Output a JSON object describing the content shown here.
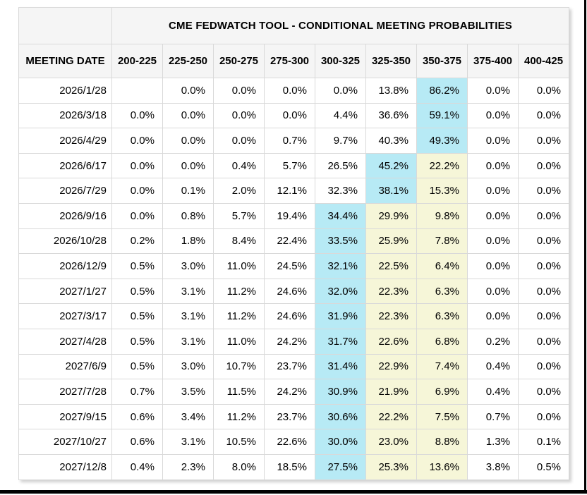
{
  "chart_data": {
    "type": "table",
    "title": "CME FEDWATCH TOOL - CONDITIONAL MEETING PROBABILITIES",
    "corner_label": "",
    "columns": [
      "MEETING DATE",
      "200-225",
      "225-250",
      "250-275",
      "275-300",
      "300-325",
      "325-350",
      "350-375",
      "375-400",
      "400-425"
    ],
    "highlight_legend": {
      "b": "highest-probability cell (light blue)",
      "y": "secondary highlighted cell (pale yellow)"
    },
    "rows": [
      {
        "date": "2026/1/28",
        "values": [
          "",
          "0.0%",
          "0.0%",
          "0.0%",
          "0.0%",
          "13.8%",
          "86.2%",
          "0.0%",
          "0.0%"
        ],
        "hl": [
          "",
          "",
          "",
          "",
          "",
          "",
          "b",
          "",
          ""
        ]
      },
      {
        "date": "2026/3/18",
        "values": [
          "0.0%",
          "0.0%",
          "0.0%",
          "0.0%",
          "4.4%",
          "36.6%",
          "59.1%",
          "0.0%",
          "0.0%"
        ],
        "hl": [
          "",
          "",
          "",
          "",
          "",
          "",
          "b",
          "",
          ""
        ]
      },
      {
        "date": "2026/4/29",
        "values": [
          "0.0%",
          "0.0%",
          "0.0%",
          "0.7%",
          "9.7%",
          "40.3%",
          "49.3%",
          "0.0%",
          "0.0%"
        ],
        "hl": [
          "",
          "",
          "",
          "",
          "",
          "",
          "b",
          "",
          ""
        ]
      },
      {
        "date": "2026/6/17",
        "values": [
          "0.0%",
          "0.0%",
          "0.4%",
          "5.7%",
          "26.5%",
          "45.2%",
          "22.2%",
          "0.0%",
          "0.0%"
        ],
        "hl": [
          "",
          "",
          "",
          "",
          "",
          "b",
          "y",
          "",
          ""
        ]
      },
      {
        "date": "2026/7/29",
        "values": [
          "0.0%",
          "0.1%",
          "2.0%",
          "12.1%",
          "32.3%",
          "38.1%",
          "15.3%",
          "0.0%",
          "0.0%"
        ],
        "hl": [
          "",
          "",
          "",
          "",
          "",
          "b",
          "y",
          "",
          ""
        ]
      },
      {
        "date": "2026/9/16",
        "values": [
          "0.0%",
          "0.8%",
          "5.7%",
          "19.4%",
          "34.4%",
          "29.9%",
          "9.8%",
          "0.0%",
          "0.0%"
        ],
        "hl": [
          "",
          "",
          "",
          "",
          "b",
          "y",
          "y",
          "",
          ""
        ]
      },
      {
        "date": "2026/10/28",
        "values": [
          "0.2%",
          "1.8%",
          "8.4%",
          "22.4%",
          "33.5%",
          "25.9%",
          "7.8%",
          "0.0%",
          "0.0%"
        ],
        "hl": [
          "",
          "",
          "",
          "",
          "b",
          "y",
          "y",
          "",
          ""
        ]
      },
      {
        "date": "2026/12/9",
        "values": [
          "0.5%",
          "3.0%",
          "11.0%",
          "24.5%",
          "32.1%",
          "22.5%",
          "6.4%",
          "0.0%",
          "0.0%"
        ],
        "hl": [
          "",
          "",
          "",
          "",
          "b",
          "y",
          "y",
          "",
          ""
        ]
      },
      {
        "date": "2027/1/27",
        "values": [
          "0.5%",
          "3.1%",
          "11.2%",
          "24.6%",
          "32.0%",
          "22.3%",
          "6.3%",
          "0.0%",
          "0.0%"
        ],
        "hl": [
          "",
          "",
          "",
          "",
          "b",
          "y",
          "y",
          "",
          ""
        ]
      },
      {
        "date": "2027/3/17",
        "values": [
          "0.5%",
          "3.1%",
          "11.2%",
          "24.6%",
          "31.9%",
          "22.3%",
          "6.3%",
          "0.0%",
          "0.0%"
        ],
        "hl": [
          "",
          "",
          "",
          "",
          "b",
          "y",
          "y",
          "",
          ""
        ]
      },
      {
        "date": "2027/4/28",
        "values": [
          "0.5%",
          "3.1%",
          "11.0%",
          "24.2%",
          "31.7%",
          "22.6%",
          "6.8%",
          "0.2%",
          "0.0%"
        ],
        "hl": [
          "",
          "",
          "",
          "",
          "b",
          "y",
          "y",
          "",
          ""
        ]
      },
      {
        "date": "2027/6/9",
        "values": [
          "0.5%",
          "3.0%",
          "10.7%",
          "23.7%",
          "31.4%",
          "22.9%",
          "7.4%",
          "0.4%",
          "0.0%"
        ],
        "hl": [
          "",
          "",
          "",
          "",
          "b",
          "y",
          "y",
          "",
          ""
        ]
      },
      {
        "date": "2027/7/28",
        "values": [
          "0.7%",
          "3.5%",
          "11.5%",
          "24.2%",
          "30.9%",
          "21.9%",
          "6.9%",
          "0.4%",
          "0.0%"
        ],
        "hl": [
          "",
          "",
          "",
          "",
          "b",
          "y",
          "y",
          "",
          ""
        ]
      },
      {
        "date": "2027/9/15",
        "values": [
          "0.6%",
          "3.4%",
          "11.2%",
          "23.7%",
          "30.6%",
          "22.2%",
          "7.5%",
          "0.7%",
          "0.0%"
        ],
        "hl": [
          "",
          "",
          "",
          "",
          "b",
          "y",
          "y",
          "",
          ""
        ]
      },
      {
        "date": "2027/10/27",
        "values": [
          "0.6%",
          "3.1%",
          "10.5%",
          "22.6%",
          "30.0%",
          "23.0%",
          "8.8%",
          "1.3%",
          "0.1%"
        ],
        "hl": [
          "",
          "",
          "",
          "",
          "b",
          "y",
          "y",
          "",
          ""
        ]
      },
      {
        "date": "2027/12/8",
        "values": [
          "0.4%",
          "2.3%",
          "8.0%",
          "18.5%",
          "27.5%",
          "25.3%",
          "13.6%",
          "3.8%",
          "0.5%"
        ],
        "hl": [
          "",
          "",
          "",
          "",
          "b",
          "y",
          "y",
          "",
          ""
        ]
      }
    ]
  },
  "colors": {
    "highlight_blue": "#b7eaf5",
    "highlight_yellow": "#f6f6d8",
    "header_background": "#f5f5f5",
    "cell_border": "#d9d9d9",
    "text": "#000000",
    "window_frame": "#000000"
  }
}
